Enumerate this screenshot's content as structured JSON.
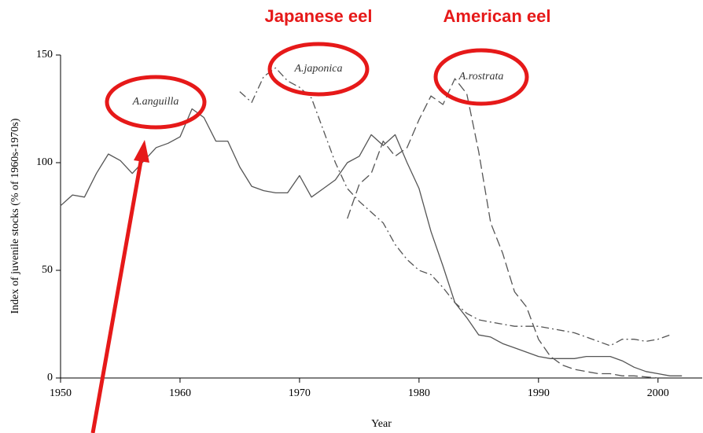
{
  "chart_data": {
    "type": "line",
    "x_label": "Year",
    "y_label": "Index of juvenile stocks (% of 1960s-1970s)",
    "annotations": [
      "Japanese eel",
      "American eel"
    ],
    "xlim": [
      1950,
      2003.7
    ],
    "xticks": [
      1950,
      1960,
      1970,
      1980,
      1990,
      2000
    ],
    "ylim": [
      0,
      150
    ],
    "yticks": [
      0,
      50,
      100,
      150
    ],
    "series": [
      {
        "name": "A.anguilla",
        "color": "#555555",
        "dash": "solid",
        "x": [
          1950,
          1951,
          1952,
          1953,
          1954,
          1955,
          1956,
          1957,
          1958,
          1959,
          1960,
          1961,
          1962,
          1963,
          1964,
          1965,
          1966,
          1967,
          1968,
          1969,
          1970,
          1971,
          1972,
          1973,
          1974,
          1975,
          1976,
          1977,
          1978,
          1979,
          1980,
          1981,
          1982,
          1983,
          1984,
          1985,
          1986,
          1987,
          1988,
          1989,
          1990,
          1991,
          1992,
          1993,
          1994,
          1995,
          1996,
          1997,
          1998,
          1999,
          2000,
          2001,
          2002
        ],
        "values": [
          80,
          85,
          84,
          95,
          104,
          101,
          95,
          101,
          107,
          109,
          112,
          125,
          121,
          110,
          110,
          98,
          89,
          87,
          86,
          86,
          94,
          84,
          88,
          92,
          100,
          103,
          113,
          108,
          113,
          100,
          88,
          68,
          52,
          35,
          28,
          20,
          19,
          16,
          14,
          12,
          10,
          9,
          9,
          9,
          10,
          10,
          10,
          8,
          5,
          3,
          2,
          1,
          1
        ]
      },
      {
        "name": "A.japonica",
        "color": "#555555",
        "dash": "dashdot",
        "x": [
          1965,
          1966,
          1967,
          1968,
          1969,
          1970,
          1971,
          1972,
          1973,
          1974,
          1975,
          1976,
          1977,
          1978,
          1979,
          1980,
          1981,
          1982,
          1983,
          1984,
          1985,
          1986,
          1987,
          1988,
          1989,
          1990,
          1991,
          1992,
          1993,
          1994,
          1995,
          1996,
          1997,
          1998,
          1999,
          2000,
          2001
        ],
        "values": [
          133,
          128,
          140,
          144,
          138,
          135,
          130,
          115,
          100,
          88,
          82,
          77,
          72,
          62,
          55,
          50,
          48,
          42,
          35,
          30,
          27,
          26,
          25,
          24,
          24,
          24,
          23,
          22,
          21,
          19,
          17,
          15,
          18,
          18,
          17,
          18,
          20
        ]
      },
      {
        "name": "A.rostrata",
        "color": "#555555",
        "dash": "longdash",
        "x": [
          1974,
          1975,
          1976,
          1977,
          1978,
          1979,
          1980,
          1981,
          1982,
          1983,
          1984,
          1985,
          1986,
          1987,
          1988,
          1989,
          1990,
          1991,
          1992,
          1993,
          1994,
          1995,
          1996,
          1997,
          1998,
          1999,
          2000
        ],
        "values": [
          74,
          90,
          95,
          110,
          103,
          107,
          120,
          131,
          127,
          139,
          132,
          105,
          72,
          58,
          40,
          33,
          18,
          10,
          6,
          4,
          3,
          2,
          2,
          1,
          1,
          0.5,
          0
        ]
      }
    ]
  }
}
